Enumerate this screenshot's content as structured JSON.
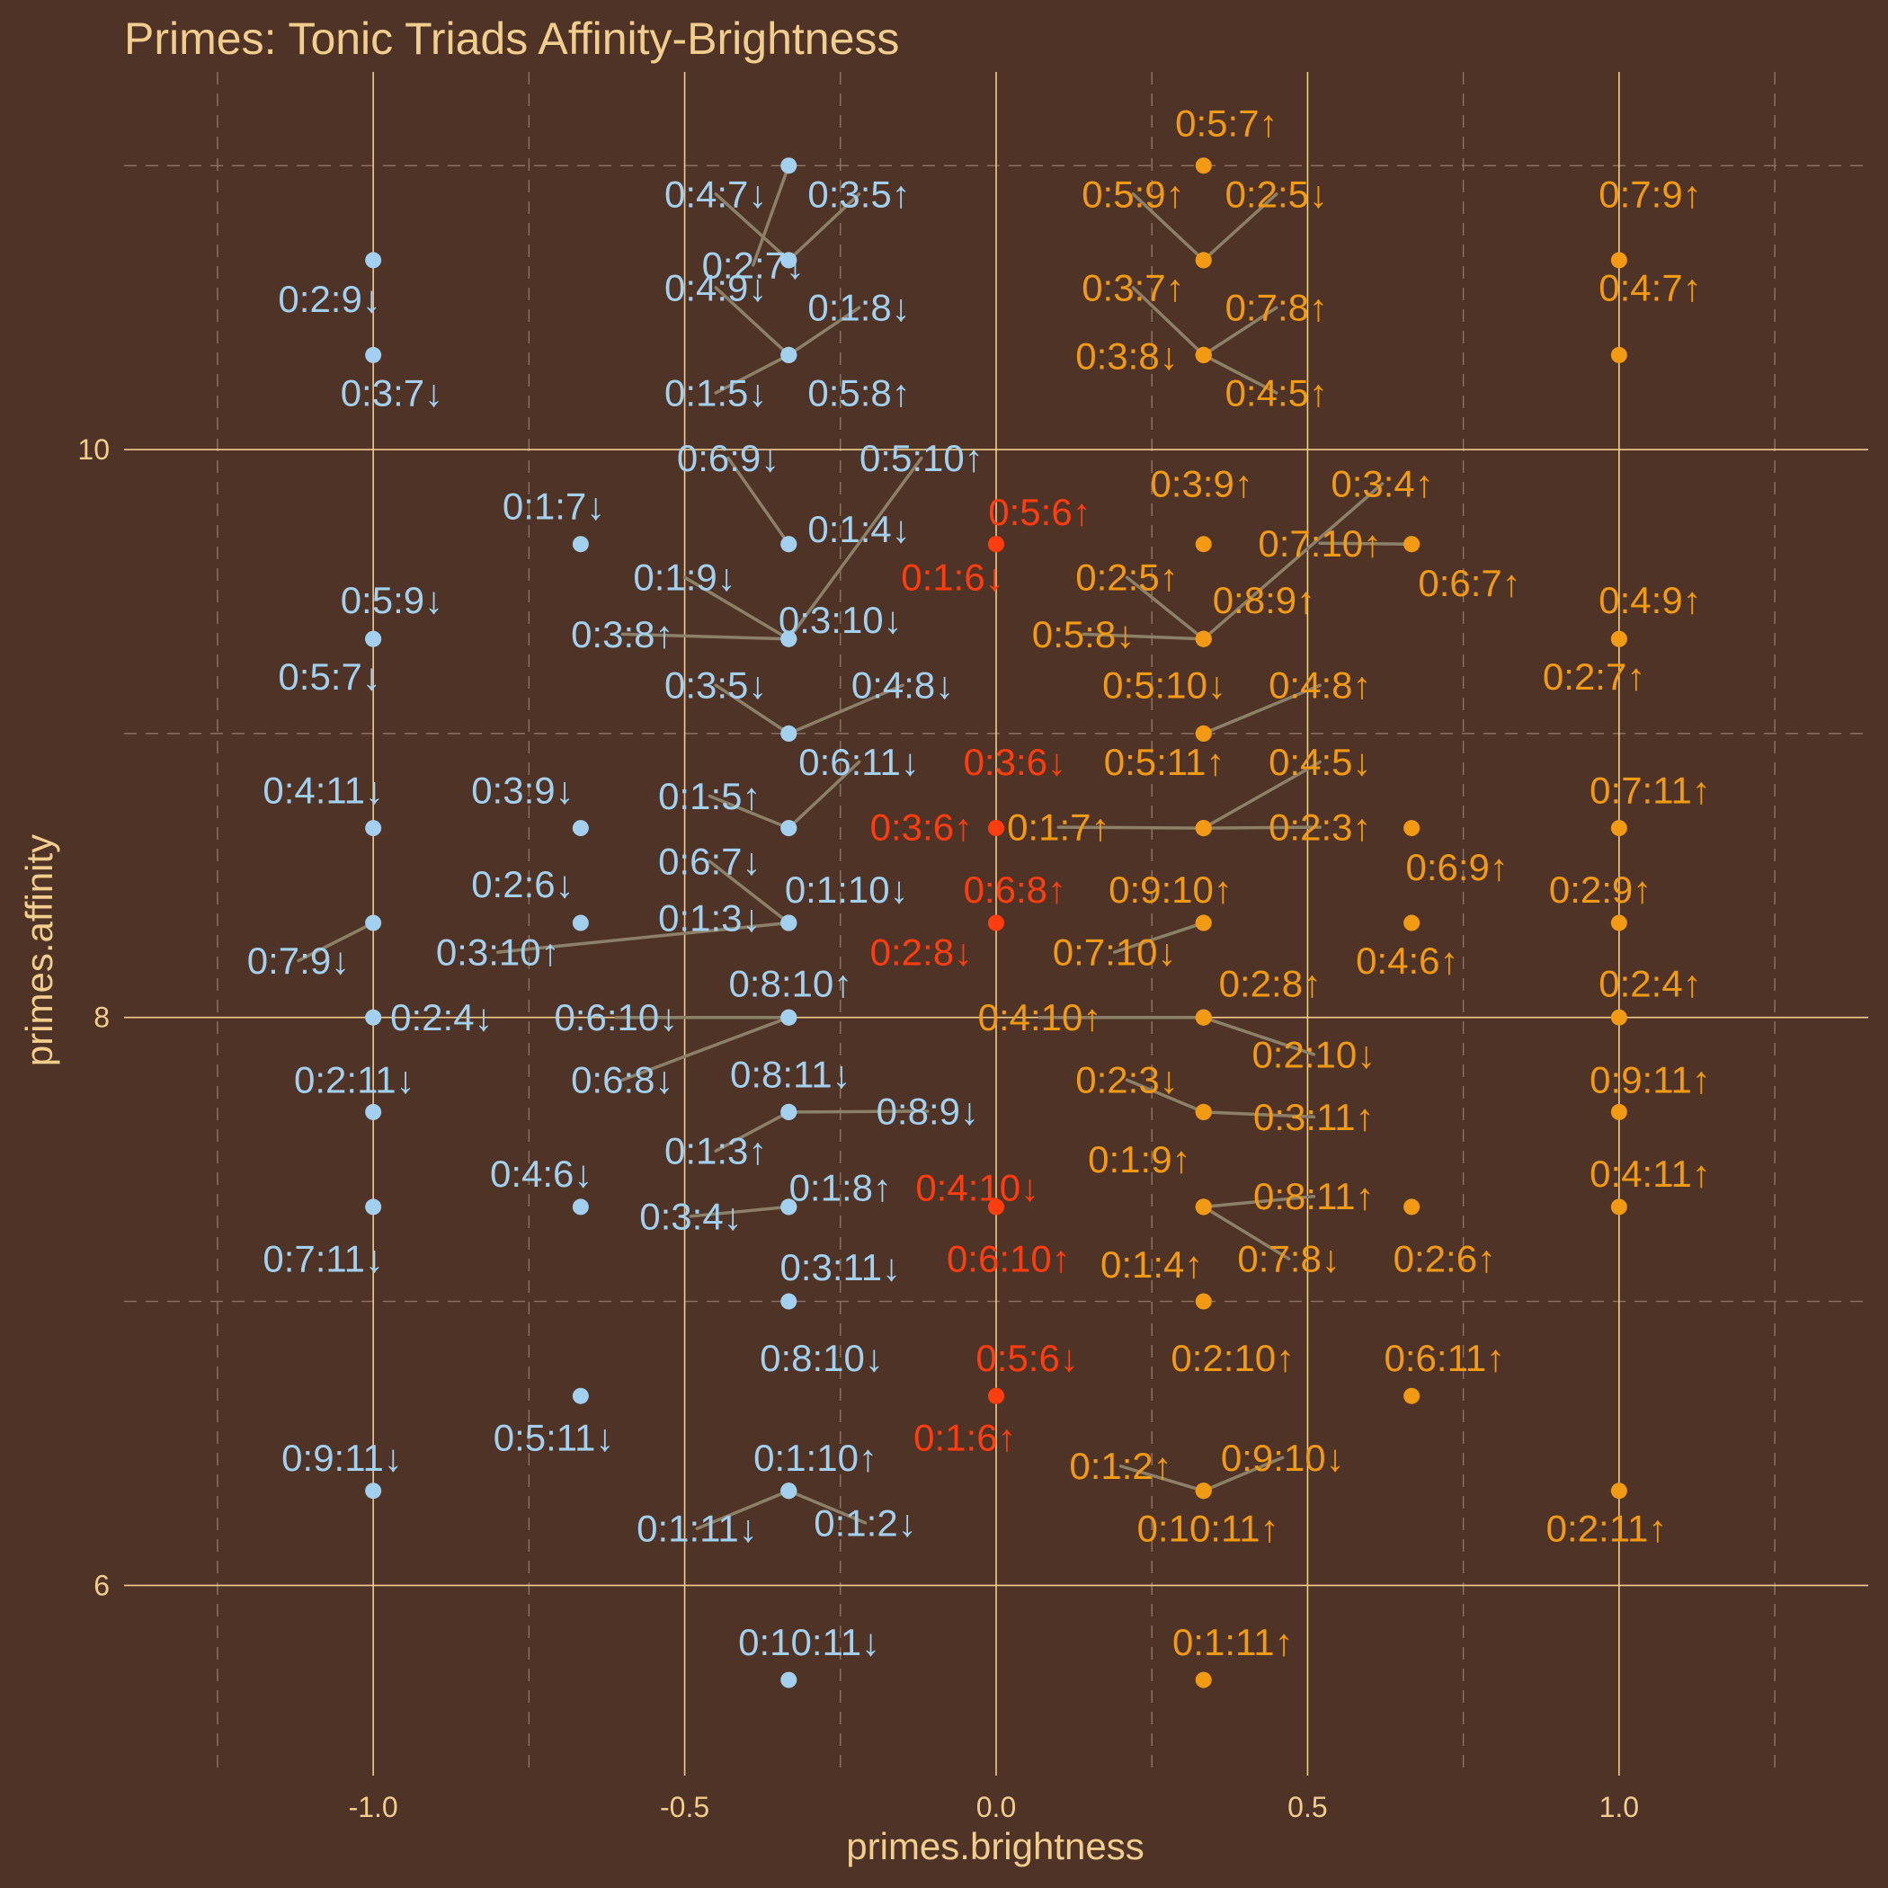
{
  "title": "Primes: Tonic Triads Affinity-Brightness",
  "chart_data": {
    "type": "scatter",
    "title": "Primes: Tonic Triads Affinity-Brightness",
    "xlabel": "primes.brightness",
    "ylabel": "primes.affinity",
    "xlim": [
      -1.4,
      1.4
    ],
    "ylim": [
      5.33,
      11.33
    ],
    "x_ticks": [
      "-1.0",
      "-0.5",
      "0.0",
      "0.5",
      "1.0"
    ],
    "y_ticks": [
      "6",
      "8",
      "10"
    ],
    "x_tick_values": [
      -1.0,
      -0.5,
      0.0,
      0.5,
      1.0
    ],
    "y_tick_values": [
      6,
      8,
      10
    ],
    "grid": true,
    "legend": "none",
    "colors": {
      "background": "#4e3326",
      "text": "#f1cd8e",
      "grid_major": "#f1cd8e",
      "grid_minor": "#8a7260",
      "connector": "#8c8068",
      "dark": "#a3d0ee",
      "neutral": "#ff3d0e",
      "bright": "#f29a14"
    },
    "series": [
      {
        "group": "dark",
        "points": [
          {
            "label": "0:2:7↓",
            "x": -0.333,
            "y": 11.0,
            "lx": -0.39,
            "ly": 10.65
          },
          {
            "label": "0:4:7↓",
            "x": -0.333,
            "y": 10.667,
            "lx": -0.45,
            "ly": 10.9
          },
          {
            "label": "0:3:5↑",
            "x": -0.333,
            "y": 10.667,
            "lx": -0.22,
            "ly": 10.9
          },
          {
            "label": "0:4:9↓",
            "x": -0.333,
            "y": 10.333,
            "lx": -0.45,
            "ly": 10.57
          },
          {
            "label": "0:1:8↓",
            "x": -0.333,
            "y": 10.333,
            "lx": -0.22,
            "ly": 10.5
          },
          {
            "label": "0:1:5↓",
            "x": -0.333,
            "y": 10.333,
            "lx": -0.45,
            "ly": 10.2
          },
          {
            "label": "0:5:8↑",
            "x": -0.333,
            "y": 10.333,
            "lx": -0.22,
            "ly": 10.2
          },
          {
            "label": "0:6:9↓",
            "x": -0.333,
            "y": 9.667,
            "lx": -0.43,
            "ly": 9.97
          },
          {
            "label": "0:5:10↑",
            "x": -0.333,
            "y": 9.333,
            "lx": -0.12,
            "ly": 9.97
          },
          {
            "label": "0:1:4↓",
            "x": -0.333,
            "y": 9.667,
            "lx": -0.22,
            "ly": 9.72
          },
          {
            "label": "0:1:9↓",
            "x": -0.333,
            "y": 9.333,
            "lx": -0.5,
            "ly": 9.55
          },
          {
            "label": "0:3:10↓",
            "x": -0.333,
            "y": 9.333,
            "lx": -0.25,
            "ly": 9.4
          },
          {
            "label": "0:3:8↑",
            "x": -0.333,
            "y": 9.333,
            "lx": -0.6,
            "ly": 9.35
          },
          {
            "label": "0:3:5↓",
            "x": -0.333,
            "y": 9.0,
            "lx": -0.45,
            "ly": 9.17
          },
          {
            "label": "0:4:8↓",
            "x": -0.333,
            "y": 9.0,
            "lx": -0.15,
            "ly": 9.17
          },
          {
            "label": "0:6:11↓",
            "x": -0.333,
            "y": 8.667,
            "lx": -0.22,
            "ly": 8.9
          },
          {
            "label": "0:1:5↑",
            "x": -0.333,
            "y": 8.667,
            "lx": -0.46,
            "ly": 8.78
          },
          {
            "label": "0:6:7↓",
            "x": -0.333,
            "y": 8.333,
            "lx": -0.46,
            "ly": 8.55
          },
          {
            "label": "0:1:10↓",
            "x": -0.333,
            "y": 8.333,
            "lx": -0.24,
            "ly": 8.45
          },
          {
            "label": "0:1:3↓",
            "x": -0.333,
            "y": 8.333,
            "lx": -0.46,
            "ly": 8.35
          },
          {
            "label": "0:3:10↑",
            "x": -0.333,
            "y": 8.333,
            "lx": -0.8,
            "ly": 8.23
          },
          {
            "label": "0:8:10↑",
            "x": -0.333,
            "y": 8.0,
            "lx": -0.33,
            "ly": 8.12
          },
          {
            "label": "0:6:10↓",
            "x": -0.333,
            "y": 8.0,
            "lx": -0.61,
            "ly": 8.0
          },
          {
            "label": "0:8:11↓",
            "x": -0.333,
            "y": 7.667,
            "lx": -0.33,
            "ly": 7.8
          },
          {
            "label": "0:6:8↓",
            "x": -0.333,
            "y": 8.0,
            "lx": -0.6,
            "ly": 7.78
          },
          {
            "label": "0:8:9↓",
            "x": -0.333,
            "y": 7.667,
            "lx": -0.11,
            "ly": 7.67
          },
          {
            "label": "0:1:3↑",
            "x": -0.333,
            "y": 7.667,
            "lx": -0.45,
            "ly": 7.53
          },
          {
            "label": "0:1:8↑",
            "x": -0.333,
            "y": 7.333,
            "lx": -0.25,
            "ly": 7.4
          },
          {
            "label": "0:3:4↓",
            "x": -0.333,
            "y": 7.333,
            "lx": -0.49,
            "ly": 7.3
          },
          {
            "label": "0:3:11↓",
            "x": -0.333,
            "y": 7.333,
            "lx": -0.25,
            "ly": 7.12
          },
          {
            "label": "0:8:10↓",
            "x": -0.333,
            "y": 7.0,
            "lx": -0.28,
            "ly": 6.8
          },
          {
            "label": "0:1:10↑",
            "x": -0.333,
            "y": 6.333,
            "lx": -0.29,
            "ly": 6.45
          },
          {
            "label": "0:1:2↓",
            "x": -0.333,
            "y": 6.333,
            "lx": -0.21,
            "ly": 6.22
          },
          {
            "label": "0:1:11↓",
            "x": -0.333,
            "y": 6.333,
            "lx": -0.48,
            "ly": 6.2
          },
          {
            "label": "0:10:11↓",
            "x": -0.333,
            "y": 5.667,
            "lx": -0.3,
            "ly": 5.8
          },
          {
            "label": "0:2:9↓",
            "x": -1.0,
            "y": 10.667,
            "lx": -1.07,
            "ly": 10.53
          },
          {
            "label": "0:3:7↓",
            "x": -1.0,
            "y": 10.333,
            "lx": -0.97,
            "ly": 10.2
          },
          {
            "label": "0:1:7↓",
            "x": -0.667,
            "y": 9.667,
            "lx": -0.71,
            "ly": 9.8
          },
          {
            "label": "0:5:9↓",
            "x": -1.0,
            "y": 9.333,
            "lx": -0.97,
            "ly": 9.47
          },
          {
            "label": "0:5:7↓",
            "x": -1.0,
            "y": 9.333,
            "lx": -1.07,
            "ly": 9.2
          },
          {
            "label": "0:4:11↓",
            "x": -1.0,
            "y": 8.667,
            "lx": -1.08,
            "ly": 8.8
          },
          {
            "label": "0:3:9↓",
            "x": -0.667,
            "y": 8.667,
            "lx": -0.76,
            "ly": 8.8
          },
          {
            "label": "0:2:6↓",
            "x": -0.667,
            "y": 8.333,
            "lx": -0.76,
            "ly": 8.47
          },
          {
            "label": "0:7:9↓",
            "x": -1.0,
            "y": 8.333,
            "lx": -1.12,
            "ly": 8.2
          },
          {
            "label": "0:2:4↓",
            "x": -1.0,
            "y": 8.0,
            "lx": -0.89,
            "ly": 8.0
          },
          {
            "label": "0:2:11↓",
            "x": -1.0,
            "y": 7.667,
            "lx": -1.03,
            "ly": 7.78
          },
          {
            "label": "0:4:6↓",
            "x": -0.667,
            "y": 7.333,
            "lx": -0.73,
            "ly": 7.45
          },
          {
            "label": "0:7:11↓",
            "x": -1.0,
            "y": 7.333,
            "lx": -1.08,
            "ly": 7.15
          },
          {
            "label": "0:5:11↓",
            "x": -0.667,
            "y": 6.667,
            "lx": -0.71,
            "ly": 6.52
          },
          {
            "label": "0:9:11↓",
            "x": -1.0,
            "y": 6.333,
            "lx": -1.05,
            "ly": 6.45
          }
        ]
      },
      {
        "group": "neutral",
        "points": [
          {
            "label": "0:5:6↑",
            "x": 0.0,
            "y": 9.667,
            "lx": 0.07,
            "ly": 9.78
          },
          {
            "label": "0:1:6↓",
            "x": 0.0,
            "y": 9.667,
            "lx": -0.07,
            "ly": 9.55
          },
          {
            "label": "0:3:6↓",
            "x": 0.0,
            "y": 8.667,
            "lx": 0.03,
            "ly": 8.9
          },
          {
            "label": "0:3:6↑",
            "x": 0.0,
            "y": 8.667,
            "lx": -0.12,
            "ly": 8.67
          },
          {
            "label": "0:6:8↑",
            "x": 0.0,
            "y": 8.333,
            "lx": 0.03,
            "ly": 8.45
          },
          {
            "label": "0:2:8↓",
            "x": 0.0,
            "y": 8.333,
            "lx": -0.12,
            "ly": 8.23
          },
          {
            "label": "0:4:10↓",
            "x": 0.0,
            "y": 7.333,
            "lx": -0.03,
            "ly": 7.4
          },
          {
            "label": "0:6:10↑",
            "x": 0.0,
            "y": 7.333,
            "lx": 0.02,
            "ly": 7.15
          },
          {
            "label": "0:5:6↓",
            "x": 0.0,
            "y": 6.667,
            "lx": 0.05,
            "ly": 6.8
          },
          {
            "label": "0:1:6↑",
            "x": 0.0,
            "y": 6.667,
            "lx": -0.05,
            "ly": 6.52
          }
        ]
      },
      {
        "group": "bright",
        "points": [
          {
            "label": "0:5:7↑",
            "x": 0.333,
            "y": 11.0,
            "lx": 0.37,
            "ly": 11.15
          },
          {
            "label": "0:5:9↑",
            "x": 0.333,
            "y": 10.667,
            "lx": 0.22,
            "ly": 10.9
          },
          {
            "label": "0:2:5↓",
            "x": 0.333,
            "y": 10.667,
            "lx": 0.45,
            "ly": 10.9
          },
          {
            "label": "0:3:7↑",
            "x": 0.333,
            "y": 10.333,
            "lx": 0.22,
            "ly": 10.57
          },
          {
            "label": "0:7:8↑",
            "x": 0.333,
            "y": 10.333,
            "lx": 0.45,
            "ly": 10.5
          },
          {
            "label": "0:3:8↓",
            "x": 0.333,
            "y": 10.333,
            "lx": 0.21,
            "ly": 10.33
          },
          {
            "label": "0:4:5↑",
            "x": 0.333,
            "y": 10.333,
            "lx": 0.45,
            "ly": 10.2
          },
          {
            "label": "0:3:9↑",
            "x": 0.333,
            "y": 9.667,
            "lx": 0.33,
            "ly": 9.88
          },
          {
            "label": "0:3:4↑",
            "x": 0.333,
            "y": 9.333,
            "lx": 0.62,
            "ly": 9.88
          },
          {
            "label": "0:7:10↑",
            "x": 0.667,
            "y": 9.667,
            "lx": 0.52,
            "ly": 9.67
          },
          {
            "label": "0:6:7↑",
            "x": 0.667,
            "y": 9.667,
            "lx": 0.76,
            "ly": 9.53
          },
          {
            "label": "0:2:5↑",
            "x": 0.333,
            "y": 9.333,
            "lx": 0.21,
            "ly": 9.55
          },
          {
            "label": "0:8:9↑",
            "x": 0.333,
            "y": 9.333,
            "lx": 0.43,
            "ly": 9.47
          },
          {
            "label": "0:5:8↓",
            "x": 0.333,
            "y": 9.333,
            "lx": 0.14,
            "ly": 9.35
          },
          {
            "label": "0:5:10↓",
            "x": 0.333,
            "y": 9.0,
            "lx": 0.27,
            "ly": 9.17
          },
          {
            "label": "0:4:8↑",
            "x": 0.333,
            "y": 9.0,
            "lx": 0.52,
            "ly": 9.17
          },
          {
            "label": "0:5:11↑",
            "x": 0.333,
            "y": 8.667,
            "lx": 0.27,
            "ly": 8.9
          },
          {
            "label": "0:4:5↓",
            "x": 0.333,
            "y": 8.667,
            "lx": 0.52,
            "ly": 8.9
          },
          {
            "label": "0:1:7↑",
            "x": 0.333,
            "y": 8.667,
            "lx": 0.1,
            "ly": 8.67
          },
          {
            "label": "0:2:3↑",
            "x": 0.333,
            "y": 8.667,
            "lx": 0.52,
            "ly": 8.67
          },
          {
            "label": "0:9:10↑",
            "x": 0.333,
            "y": 8.333,
            "lx": 0.28,
            "ly": 8.45
          },
          {
            "label": "0:7:10↓",
            "x": 0.333,
            "y": 8.333,
            "lx": 0.19,
            "ly": 8.23
          },
          {
            "label": "0:2:8↑",
            "x": 0.333,
            "y": 8.0,
            "lx": 0.44,
            "ly": 8.12
          },
          {
            "label": "0:4:10↑",
            "x": 0.333,
            "y": 8.0,
            "lx": 0.07,
            "ly": 8.0
          },
          {
            "label": "0:2:10↓",
            "x": 0.333,
            "y": 8.0,
            "lx": 0.51,
            "ly": 7.87
          },
          {
            "label": "0:2:3↓",
            "x": 0.333,
            "y": 7.667,
            "lx": 0.21,
            "ly": 7.78
          },
          {
            "label": "0:3:11↑",
            "x": 0.333,
            "y": 7.667,
            "lx": 0.51,
            "ly": 7.65
          },
          {
            "label": "0:1:9↑",
            "x": 0.333,
            "y": 7.667,
            "lx": 0.23,
            "ly": 7.5
          },
          {
            "label": "0:8:11↑",
            "x": 0.333,
            "y": 7.333,
            "lx": 0.51,
            "ly": 7.37
          },
          {
            "label": "0:7:8↓",
            "x": 0.333,
            "y": 7.333,
            "lx": 0.47,
            "ly": 7.15
          },
          {
            "label": "0:1:4↑",
            "x": 0.333,
            "y": 7.333,
            "lx": 0.25,
            "ly": 7.13
          },
          {
            "label": "0:2:10↑",
            "x": 0.333,
            "y": 7.0,
            "lx": 0.38,
            "ly": 6.8
          },
          {
            "label": "0:1:2↑",
            "x": 0.333,
            "y": 6.333,
            "lx": 0.2,
            "ly": 6.42
          },
          {
            "label": "0:9:10↓",
            "x": 0.333,
            "y": 6.333,
            "lx": 0.46,
            "ly": 6.45
          },
          {
            "label": "0:10:11↑",
            "x": 0.333,
            "y": 6.333,
            "lx": 0.34,
            "ly": 6.2
          },
          {
            "label": "0:1:11↑",
            "x": 0.333,
            "y": 5.667,
            "lx": 0.38,
            "ly": 5.8
          },
          {
            "label": "0:6:9↑",
            "x": 0.667,
            "y": 8.667,
            "lx": 0.74,
            "ly": 8.53
          },
          {
            "label": "0:4:6↑",
            "x": 0.667,
            "y": 8.333,
            "lx": 0.66,
            "ly": 8.2
          },
          {
            "label": "0:2:6↑",
            "x": 0.667,
            "y": 7.333,
            "lx": 0.72,
            "ly": 7.15
          },
          {
            "label": "0:6:11↑",
            "x": 0.667,
            "y": 6.667,
            "lx": 0.72,
            "ly": 6.8
          },
          {
            "label": "0:7:9↑",
            "x": 1.0,
            "y": 10.667,
            "lx": 1.05,
            "ly": 10.9
          },
          {
            "label": "0:4:7↑",
            "x": 1.0,
            "y": 10.333,
            "lx": 1.05,
            "ly": 10.57
          },
          {
            "label": "0:4:9↑",
            "x": 1.0,
            "y": 9.333,
            "lx": 1.05,
            "ly": 9.47
          },
          {
            "label": "0:2:7↑",
            "x": 1.0,
            "y": 9.333,
            "lx": 0.96,
            "ly": 9.2
          },
          {
            "label": "0:7:11↑",
            "x": 1.0,
            "y": 8.667,
            "lx": 1.05,
            "ly": 8.8
          },
          {
            "label": "0:2:9↑",
            "x": 1.0,
            "y": 8.333,
            "lx": 0.97,
            "ly": 8.45
          },
          {
            "label": "0:2:4↑",
            "x": 1.0,
            "y": 8.0,
            "lx": 1.05,
            "ly": 8.12
          },
          {
            "label": "0:9:11↑",
            "x": 1.0,
            "y": 7.667,
            "lx": 1.05,
            "ly": 7.78
          },
          {
            "label": "0:4:11↑",
            "x": 1.0,
            "y": 7.333,
            "lx": 1.05,
            "ly": 7.45
          },
          {
            "label": "0:2:11↑",
            "x": 1.0,
            "y": 6.333,
            "lx": 0.98,
            "ly": 6.2
          }
        ]
      }
    ]
  }
}
